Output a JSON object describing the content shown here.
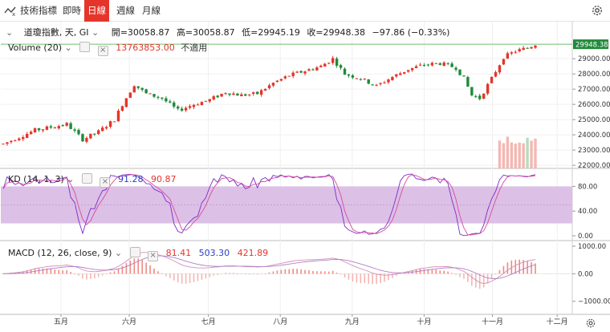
{
  "toolbar": {
    "indicators_label": "技術指標",
    "tabs": [
      {
        "label": "即時",
        "active": false
      },
      {
        "label": "日線",
        "active": true
      },
      {
        "label": "週線",
        "active": false
      },
      {
        "label": "月線",
        "active": false
      }
    ]
  },
  "header": {
    "symbol": "道瓊指數, 天, GI",
    "open_label": "開",
    "open_value": "=30058.87",
    "high_label": "高",
    "high_value": "=30058.87",
    "low_label": "低",
    "low_value": "=29945.19",
    "close_label": "收",
    "close_value": "=29948.38",
    "change": "−97.86 (−0.33%)"
  },
  "volume_legend": {
    "label": "Volume (20)",
    "value": "13763853.00",
    "na": "不適用"
  },
  "kd_legend": {
    "label": "KD (14, 1, 3)",
    "k": "91.28",
    "d": "90.87"
  },
  "macd_legend": {
    "label": "MACD (12, 26, close, 9)",
    "hist": "81.41",
    "macd": "503.30",
    "signal": "421.89"
  },
  "colors": {
    "up": "#e5352b",
    "down": "#1f8a3a",
    "accent": "#e5352b",
    "kd_band": "#dcc0e6",
    "k_line": "#7b2cc9",
    "d_line": "#d94a9c"
  },
  "chart_data": [
    {
      "type": "candlestick",
      "price_axis_ticks": [
        "29000.00",
        "28000.00",
        "27000.00",
        "26000.00",
        "25000.00",
        "24000.00",
        "23000.00",
        "22000.00"
      ],
      "ylim": [
        21900,
        30800
      ],
      "last_price_label": "29948.38",
      "x_ticks": [
        "五月",
        "六月",
        "七月",
        "八月",
        "九月",
        "十月",
        "十一月",
        "十二月"
      ],
      "approx_close_path": [
        [
          0,
          23400
        ],
        [
          8,
          24300
        ],
        [
          16,
          24700
        ],
        [
          20,
          23700
        ],
        [
          24,
          24200
        ],
        [
          28,
          25000
        ],
        [
          30,
          26000
        ],
        [
          33,
          27300
        ],
        [
          36,
          26700
        ],
        [
          40,
          26400
        ],
        [
          44,
          25600
        ],
        [
          48,
          26000
        ],
        [
          52,
          26300
        ],
        [
          56,
          26800
        ],
        [
          60,
          26600
        ],
        [
          64,
          26700
        ],
        [
          68,
          27400
        ],
        [
          72,
          27900
        ],
        [
          76,
          28200
        ],
        [
          80,
          28500
        ],
        [
          83,
          29000
        ],
        [
          86,
          28000
        ],
        [
          90,
          27700
        ],
        [
          94,
          27200
        ],
        [
          98,
          27800
        ],
        [
          102,
          28300
        ],
        [
          106,
          28600
        ],
        [
          110,
          28700
        ],
        [
          114,
          28400
        ],
        [
          116,
          27700
        ],
        [
          118,
          26600
        ],
        [
          120,
          26400
        ],
        [
          123,
          27700
        ],
        [
          126,
          29100
        ],
        [
          129,
          29500
        ],
        [
          132,
          29700
        ],
        [
          134,
          29948
        ]
      ]
    },
    {
      "type": "line",
      "name": "KD (14, 1, 3)",
      "y_ticks": [
        "80.00",
        "40.00",
        "0.00"
      ],
      "ylim": [
        0,
        100
      ],
      "band": [
        20,
        80
      ]
    },
    {
      "type": "bar",
      "name": "MACD (12, 26, close, 9)",
      "y_ticks": [
        "1000.00",
        "0.00",
        "−1000.00"
      ],
      "ylim": [
        -1300,
        1000
      ]
    }
  ]
}
